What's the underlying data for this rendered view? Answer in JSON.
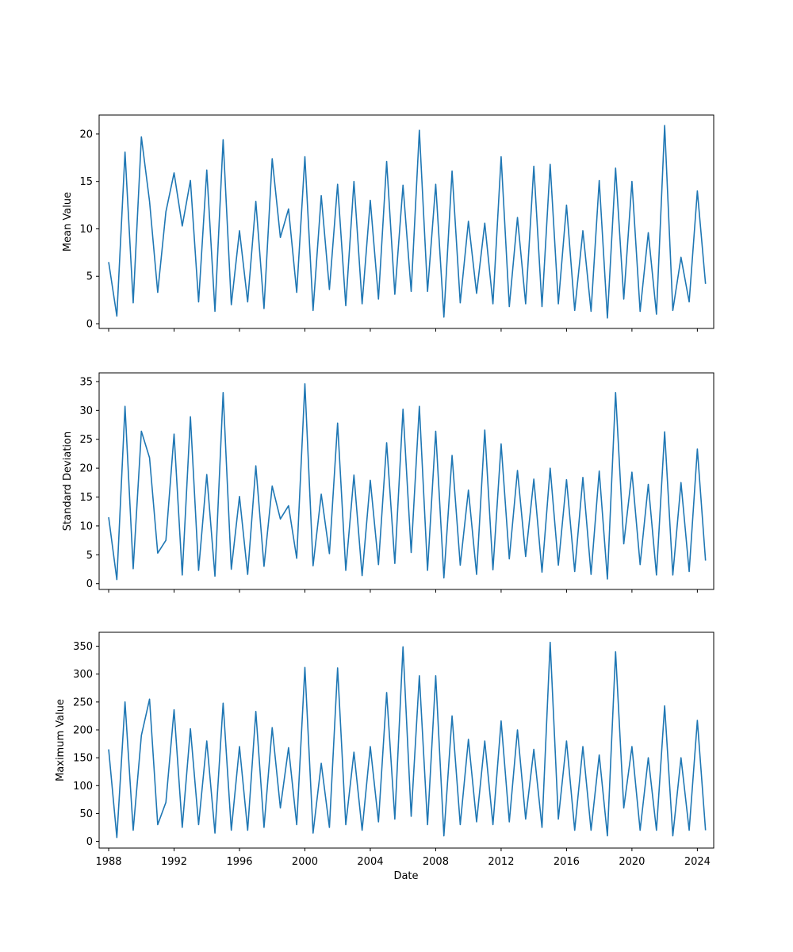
{
  "chart_data": [
    {
      "type": "line",
      "ylabel": "Mean Value",
      "xlabel": "",
      "xlim": [
        "1987-06",
        "2025-01"
      ],
      "ylim": [
        -0.5,
        22
      ],
      "yticks": [
        0,
        5,
        10,
        15,
        20
      ],
      "grid": false,
      "color": "#1f77b4",
      "x": [
        "1988-01",
        "1988-07",
        "1989-01",
        "1989-07",
        "1990-01",
        "1990-07",
        "1991-01",
        "1991-07",
        "1992-01",
        "1992-07",
        "1993-01",
        "1993-07",
        "1994-01",
        "1994-07",
        "1995-01",
        "1995-07",
        "1996-01",
        "1996-07",
        "1997-01",
        "1997-07",
        "1998-01",
        "1998-07",
        "1999-01",
        "1999-07",
        "2000-01",
        "2000-07",
        "2001-01",
        "2001-07",
        "2002-01",
        "2002-07",
        "2003-01",
        "2003-07",
        "2004-01",
        "2004-07",
        "2005-01",
        "2005-07",
        "2006-01",
        "2006-07",
        "2007-01",
        "2007-07",
        "2008-01",
        "2008-07",
        "2009-01",
        "2009-07",
        "2010-01",
        "2010-07",
        "2011-01",
        "2011-07",
        "2012-01",
        "2012-07",
        "2013-01",
        "2013-07",
        "2014-01",
        "2014-07",
        "2015-01",
        "2015-07",
        "2016-01",
        "2016-07",
        "2017-01",
        "2017-07",
        "2018-01",
        "2018-07",
        "2019-01",
        "2019-07",
        "2020-01",
        "2020-07",
        "2021-01",
        "2021-07",
        "2022-01",
        "2022-07",
        "2023-01",
        "2023-07",
        "2024-01",
        "2024-07"
      ],
      "values": [
        6.5,
        0.8,
        18.1,
        2.2,
        19.7,
        12.9,
        3.3,
        11.8,
        15.9,
        10.3,
        15.1,
        2.3,
        16.2,
        1.3,
        19.4,
        2.0,
        9.8,
        2.3,
        12.9,
        1.6,
        17.4,
        9.1,
        12.1,
        3.3,
        17.6,
        1.4,
        13.5,
        3.6,
        14.7,
        1.9,
        15.0,
        2.1,
        13.0,
        2.6,
        17.1,
        3.1,
        14.6,
        3.4,
        20.4,
        3.4,
        14.7,
        0.7,
        16.1,
        2.2,
        10.8,
        3.2,
        10.6,
        2.1,
        17.6,
        1.8,
        11.2,
        2.1,
        16.6,
        1.8,
        16.8,
        2.1,
        12.5,
        1.4,
        9.8,
        1.3,
        15.1,
        0.6,
        16.4,
        2.6,
        15.0,
        1.3,
        9.6,
        1.0,
        20.9,
        1.4,
        7.0,
        2.3,
        14.0,
        4.2
      ]
    },
    {
      "type": "line",
      "ylabel": "Standard Deviation",
      "xlabel": "",
      "xlim": [
        "1987-06",
        "2025-01"
      ],
      "ylim": [
        -1,
        36.5
      ],
      "yticks": [
        0,
        5,
        10,
        15,
        20,
        25,
        30,
        35
      ],
      "grid": false,
      "color": "#1f77b4",
      "x": [
        "1988-01",
        "1988-07",
        "1989-01",
        "1989-07",
        "1990-01",
        "1990-07",
        "1991-01",
        "1991-07",
        "1992-01",
        "1992-07",
        "1993-01",
        "1993-07",
        "1994-01",
        "1994-07",
        "1995-01",
        "1995-07",
        "1996-01",
        "1996-07",
        "1997-01",
        "1997-07",
        "1998-01",
        "1998-07",
        "1999-01",
        "1999-07",
        "2000-01",
        "2000-07",
        "2001-01",
        "2001-07",
        "2002-01",
        "2002-07",
        "2003-01",
        "2003-07",
        "2004-01",
        "2004-07",
        "2005-01",
        "2005-07",
        "2006-01",
        "2006-07",
        "2007-01",
        "2007-07",
        "2008-01",
        "2008-07",
        "2009-01",
        "2009-07",
        "2010-01",
        "2010-07",
        "2011-01",
        "2011-07",
        "2012-01",
        "2012-07",
        "2013-01",
        "2013-07",
        "2014-01",
        "2014-07",
        "2015-01",
        "2015-07",
        "2016-01",
        "2016-07",
        "2017-01",
        "2017-07",
        "2018-01",
        "2018-07",
        "2019-01",
        "2019-07",
        "2020-01",
        "2020-07",
        "2021-01",
        "2021-07",
        "2022-01",
        "2022-07",
        "2023-01",
        "2023-07",
        "2024-01",
        "2024-07"
      ],
      "values": [
        11.5,
        0.7,
        30.7,
        2.6,
        26.4,
        21.8,
        5.3,
        7.5,
        25.9,
        1.5,
        28.9,
        2.3,
        18.9,
        1.3,
        33.1,
        2.5,
        15.1,
        1.6,
        20.4,
        3.0,
        16.9,
        11.2,
        13.5,
        4.4,
        34.6,
        3.1,
        15.5,
        5.2,
        27.8,
        2.3,
        18.8,
        1.4,
        17.9,
        3.3,
        24.4,
        3.5,
        30.2,
        5.4,
        30.7,
        2.3,
        26.4,
        1.0,
        22.2,
        3.2,
        16.2,
        1.6,
        26.6,
        2.4,
        24.2,
        4.3,
        19.6,
        4.7,
        18.1,
        2.0,
        20.0,
        3.2,
        18.0,
        2.1,
        18.4,
        1.6,
        19.5,
        0.8,
        33.1,
        6.9,
        19.3,
        3.3,
        17.2,
        1.5,
        26.3,
        1.5,
        17.5,
        2.1,
        23.3,
        4.0
      ]
    },
    {
      "type": "line",
      "ylabel": "Maximum Value",
      "xlabel": "Date",
      "xlim": [
        "1987-06",
        "2025-01"
      ],
      "ylim": [
        -12,
        375
      ],
      "yticks": [
        0,
        50,
        100,
        150,
        200,
        250,
        300,
        350
      ],
      "xticks": [
        "1988",
        "1992",
        "1996",
        "2000",
        "2004",
        "2008",
        "2012",
        "2016",
        "2020",
        "2024"
      ],
      "grid": false,
      "color": "#1f77b4",
      "x": [
        "1988-01",
        "1988-07",
        "1989-01",
        "1989-07",
        "1990-01",
        "1990-07",
        "1991-01",
        "1991-07",
        "1992-01",
        "1992-07",
        "1993-01",
        "1993-07",
        "1994-01",
        "1994-07",
        "1995-01",
        "1995-07",
        "1996-01",
        "1996-07",
        "1997-01",
        "1997-07",
        "1998-01",
        "1998-07",
        "1999-01",
        "1999-07",
        "2000-01",
        "2000-07",
        "2001-01",
        "2001-07",
        "2002-01",
        "2002-07",
        "2003-01",
        "2003-07",
        "2004-01",
        "2004-07",
        "2005-01",
        "2005-07",
        "2006-01",
        "2006-07",
        "2007-01",
        "2007-07",
        "2008-01",
        "2008-07",
        "2009-01",
        "2009-07",
        "2010-01",
        "2010-07",
        "2011-01",
        "2011-07",
        "2012-01",
        "2012-07",
        "2013-01",
        "2013-07",
        "2014-01",
        "2014-07",
        "2015-01",
        "2015-07",
        "2016-01",
        "2016-07",
        "2017-01",
        "2017-07",
        "2018-01",
        "2018-07",
        "2019-01",
        "2019-07",
        "2020-01",
        "2020-07",
        "2021-01",
        "2021-07",
        "2022-01",
        "2022-07",
        "2023-01",
        "2023-07",
        "2024-01",
        "2024-07"
      ],
      "values": [
        165,
        7,
        250,
        20,
        190,
        255,
        30,
        70,
        236,
        25,
        202,
        30,
        180,
        15,
        248,
        20,
        170,
        20,
        233,
        25,
        204,
        60,
        168,
        30,
        312,
        15,
        140,
        25,
        311,
        30,
        160,
        20,
        170,
        35,
        267,
        40,
        349,
        45,
        297,
        30,
        297,
        10,
        225,
        30,
        183,
        35,
        180,
        30,
        216,
        35,
        200,
        40,
        165,
        25,
        357,
        40,
        180,
        20,
        170,
        20,
        155,
        10,
        340,
        60,
        170,
        20,
        150,
        20,
        243,
        10,
        150,
        20,
        217,
        20
      ]
    }
  ],
  "shared_x_tick_labels": [
    "1988",
    "1992",
    "1996",
    "2000",
    "2004",
    "2008",
    "2012",
    "2016",
    "2020",
    "2024"
  ],
  "panel1": {
    "ylabel": "Mean Value"
  },
  "panel2": {
    "ylabel": "Standard Deviation"
  },
  "panel3": {
    "ylabel": "Maximum Value",
    "xlabel": "Date"
  }
}
